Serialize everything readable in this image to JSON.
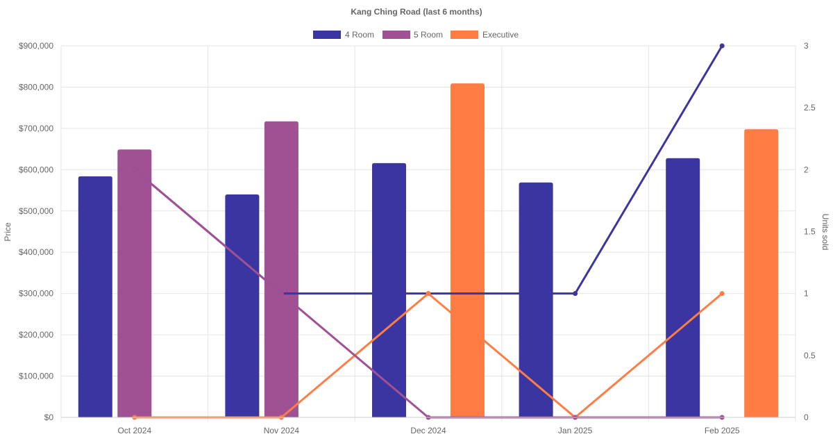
{
  "chart_data": {
    "type": "bar",
    "title": "Kang Ching Road (last 6 months)",
    "categories": [
      "Oct 2024",
      "Nov 2024",
      "Dec 2024",
      "Jan 2025",
      "Feb 2025"
    ],
    "ylabel": "Price",
    "y2label": "Units sold",
    "ylim": [
      0,
      900000
    ],
    "y2lim": [
      0,
      3
    ],
    "yticks": [
      "$0",
      "$100,000",
      "$200,000",
      "$300,000",
      "$400,000",
      "$500,000",
      "$600,000",
      "$700,000",
      "$800,000",
      "$900,000"
    ],
    "y2ticks": [
      "0",
      "0.5",
      "1",
      "1.5",
      "2",
      "2.5",
      "3"
    ],
    "legend_position": "top",
    "grid": true,
    "series": [
      {
        "name": "4 Room",
        "color": "#3a35a0",
        "prices": [
          584000,
          540000,
          616000,
          569000,
          628000
        ],
        "units": [
          2,
          1,
          1,
          1,
          3
        ]
      },
      {
        "name": "5 Room",
        "color": "#9f5194",
        "prices": [
          649000,
          717000,
          null,
          null,
          null
        ],
        "units": [
          2,
          1,
          0,
          0,
          0
        ]
      },
      {
        "name": "Executive",
        "color": "#ff7d45",
        "prices": [
          null,
          null,
          809000,
          null,
          698000
        ],
        "units": [
          0,
          0,
          1,
          0,
          1
        ]
      }
    ]
  }
}
